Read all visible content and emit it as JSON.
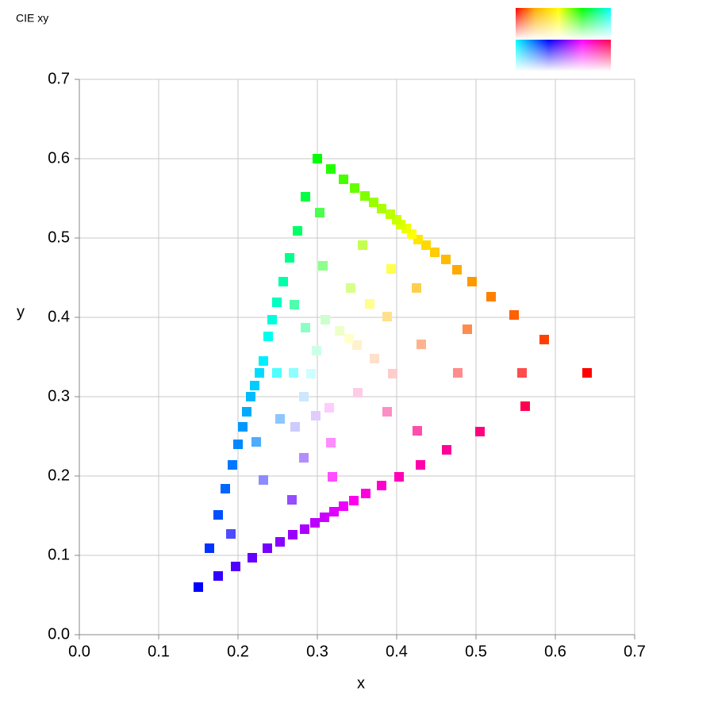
{
  "chart_data": {
    "type": "scatter",
    "title": "CIE xy",
    "x_label": "x",
    "y_label": "y",
    "xlim": [
      0,
      0.7
    ],
    "ylim": [
      0,
      0.7
    ],
    "xticks": [
      {
        "value": 0,
        "label": "0.0"
      },
      0.1,
      0.2,
      0.3,
      0.4,
      0.5,
      0.6,
      0.7
    ],
    "yticks": [
      {
        "value": 0,
        "label": "0.0"
      },
      0.1,
      0.2,
      0.3,
      0.4,
      0.5,
      0.6,
      0.7
    ],
    "grid": true,
    "series": [
      {
        "x": [
          0.64,
          0.586,
          0.548,
          0.519,
          0.495,
          0.476,
          0.462,
          0.448,
          0.437,
          0.427,
          0.419,
          0.412,
          0.405,
          0.4,
          0.392,
          0.381,
          0.371,
          0.36,
          0.347,
          0.333,
          0.317,
          0.3,
          0.285,
          0.275,
          0.265,
          0.257,
          0.249,
          0.243,
          0.238,
          0.232,
          0.227,
          0.221,
          0.216,
          0.211,
          0.206,
          0.2,
          0.193,
          0.184,
          0.175,
          0.164,
          0.15,
          0.175,
          0.197,
          0.218,
          0.237,
          0.253,
          0.269,
          0.284,
          0.297,
          0.309,
          0.321,
          0.333,
          0.346,
          0.361,
          0.381,
          0.403,
          0.43,
          0.463,
          0.505,
          0.562
        ],
        "values": [
          0.33,
          0.372,
          0.403,
          0.426,
          0.445,
          0.46,
          0.473,
          0.482,
          0.491,
          0.498,
          0.505,
          0.512,
          0.517,
          0.523,
          0.53,
          0.537,
          0.545,
          0.553,
          0.563,
          0.574,
          0.587,
          0.6,
          0.552,
          0.509,
          0.475,
          0.445,
          0.419,
          0.397,
          0.376,
          0.345,
          0.33,
          0.314,
          0.3,
          0.281,
          0.262,
          0.24,
          0.214,
          0.184,
          0.151,
          0.109,
          0.06,
          0.074,
          0.086,
          0.097,
          0.109,
          0.117,
          0.126,
          0.133,
          0.141,
          0.148,
          0.155,
          0.162,
          0.169,
          0.178,
          0.188,
          0.199,
          0.214,
          0.233,
          0.256,
          0.288
        ],
        "colors": [
          "#ff0000",
          "#ff4000",
          "#ff6000",
          "#ff8000",
          "#ff9900",
          "#ffaa00",
          "#ffbb00",
          "#ffcc00",
          "#ffd800",
          "#ffe600",
          "#ffff00",
          "#eeff00",
          "#ddff00",
          "#ccff00",
          "#bbff00",
          "#aaff00",
          "#99ff00",
          "#80ff00",
          "#66ff00",
          "#44ff00",
          "#22ff00",
          "#00ff00",
          "#00ff40",
          "#00ff66",
          "#00ff88",
          "#00ffaa",
          "#00ffc0",
          "#00ffdd",
          "#00ffee",
          "#00eeff",
          "#00ddff",
          "#00ccff",
          "#00bbff",
          "#00aaff",
          "#0099ff",
          "#0088ff",
          "#0077ff",
          "#0066ff",
          "#0050ff",
          "#0033ff",
          "#0000ff",
          "#3300ff",
          "#5000ff",
          "#6600ff",
          "#7700ff",
          "#8800ff",
          "#9900ff",
          "#aa00ff",
          "#bb00ff",
          "#cc00ff",
          "#dd00ff",
          "#ee00ff",
          "#ff00ee",
          "#ff00dd",
          "#ff00cc",
          "#ff00bb",
          "#ff00aa",
          "#ff0099",
          "#ff0080",
          "#ff0050"
        ]
      },
      {
        "x": [
          0.558,
          0.489,
          0.425,
          0.393,
          0.357,
          0.303,
          0.271,
          0.249,
          0.223,
          0.191,
          0.268,
          0.319,
          0.426
        ],
        "values": [
          0.33,
          0.385,
          0.437,
          0.461,
          0.491,
          0.532,
          0.416,
          0.33,
          0.243,
          0.127,
          0.17,
          0.199,
          0.257
        ],
        "colors": [
          "#ff4d4d",
          "#ff8c4d",
          "#ffcf4d",
          "#ffff4d",
          "#c4ff4d",
          "#4dff4d",
          "#4dffac",
          "#4dffff",
          "#4dacff",
          "#4d4dff",
          "#944dff",
          "#ff4dff",
          "#ff4dac"
        ]
      },
      {
        "x": [
          0.477,
          0.431,
          0.388,
          0.366,
          0.342,
          0.307,
          0.285,
          0.27,
          0.253,
          0.232,
          0.283,
          0.317,
          0.388
        ],
        "values": [
          0.33,
          0.366,
          0.401,
          0.417,
          0.437,
          0.465,
          0.387,
          0.33,
          0.272,
          0.195,
          0.223,
          0.242,
          0.281
        ],
        "colors": [
          "#ff8c8c",
          "#ffb38c",
          "#ffe08c",
          "#ffff8c",
          "#d9ff8c",
          "#8cff8c",
          "#8cffc6",
          "#8cffff",
          "#8cc6ff",
          "#8c8cff",
          "#b38cff",
          "#ff8cff",
          "#ff8cc6"
        ]
      },
      {
        "x": [
          0.395,
          0.372,
          0.35,
          0.34,
          0.328,
          0.31,
          0.299,
          0.292,
          0.283,
          0.272,
          0.298,
          0.315,
          0.351
        ],
        "values": [
          0.329,
          0.348,
          0.365,
          0.373,
          0.383,
          0.397,
          0.358,
          0.329,
          0.3,
          0.262,
          0.276,
          0.286,
          0.305
        ],
        "colors": [
          "#ffcccc",
          "#ffe0cc",
          "#fff1cc",
          "#ffffcc",
          "#eeffcc",
          "#ccffcc",
          "#ccffe7",
          "#ccffff",
          "#cce7ff",
          "#ccccff",
          "#e0ccff",
          "#ffccff",
          "#ffcce7"
        ]
      }
    ]
  }
}
